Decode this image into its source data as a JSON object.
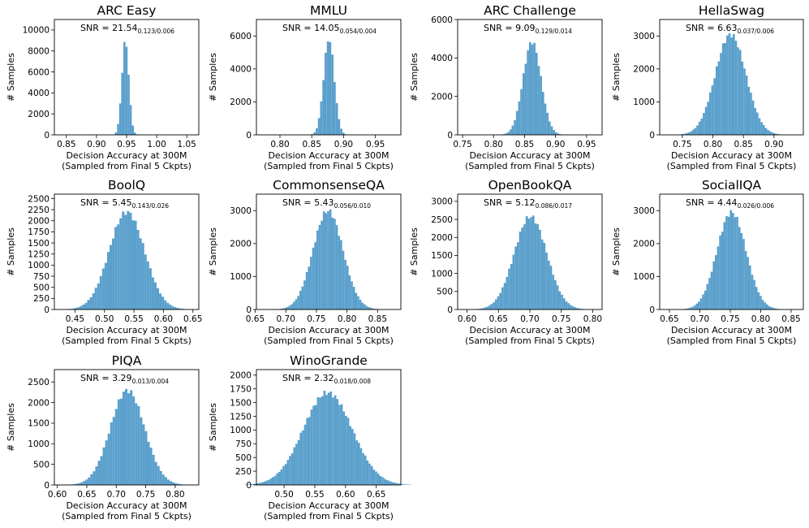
{
  "figure": {
    "xlabel_line1": "Decision Accuracy at 300M",
    "xlabel_line2": "(Sampled from Final 5 Ckpts)",
    "ylabel": "# Samples",
    "bar_color": "#5ba0cc",
    "snr_prefix": "SNR = "
  },
  "chart_data": [
    {
      "type": "bar",
      "title": "ARC Easy",
      "snr": "21.54",
      "snr_sub": "0.123/0.006",
      "xlim": [
        0.83,
        1.07
      ],
      "ylim": [
        0,
        11000
      ],
      "xticks": [
        "0.85",
        "0.90",
        "0.95",
        "1.00",
        "1.05"
      ],
      "yticks": [
        "0",
        "2000",
        "4000",
        "6000",
        "8000",
        "10000"
      ],
      "distribution": {
        "mean": 0.948,
        "sd": 0.0058,
        "peak": 8950,
        "bin": 0.0035
      }
    },
    {
      "type": "bar",
      "title": "MMLU",
      "snr": "14.05",
      "snr_sub": "0.054/0.004",
      "xlim": [
        0.763,
        0.99
      ],
      "ylim": [
        0,
        7000
      ],
      "xticks": [
        "0.80",
        "0.85",
        "0.90",
        "0.95"
      ],
      "yticks": [
        "0",
        "2000",
        "4000",
        "6000"
      ],
      "distribution": {
        "mean": 0.877,
        "sd": 0.0083,
        "peak": 5850,
        "bin": 0.0035
      }
    },
    {
      "type": "bar",
      "title": "ARC Challenge",
      "snr": "9.09",
      "snr_sub": "0.129/0.014",
      "xlim": [
        0.742,
        0.975
      ],
      "ylim": [
        0,
        6000
      ],
      "xticks": [
        "0.75",
        "0.80",
        "0.85",
        "0.90",
        "0.95"
      ],
      "yticks": [
        "0",
        "2000",
        "4000",
        "6000"
      ],
      "distribution": {
        "mean": 0.862,
        "sd": 0.0145,
        "peak": 4850,
        "bin": 0.0035
      }
    },
    {
      "type": "bar",
      "title": "HellaSwag",
      "snr": "6.63",
      "snr_sub": "0.037/0.006",
      "xlim": [
        0.713,
        0.948
      ],
      "ylim": [
        0,
        3500
      ],
      "xticks": [
        "0.75",
        "0.80",
        "0.85",
        "0.90"
      ],
      "yticks": [
        "0",
        "1000",
        "2000",
        "3000"
      ],
      "distribution": {
        "mean": 0.829,
        "sd": 0.025,
        "peak": 3050,
        "bin": 0.0035
      }
    },
    {
      "type": "bar",
      "title": "BoolQ",
      "snr": "5.45",
      "snr_sub": "0.143/0.026",
      "xlim": [
        0.415,
        0.66
      ],
      "ylim": [
        0,
        2600
      ],
      "xticks": [
        "0.45",
        "0.50",
        "0.55",
        "0.60",
        "0.65"
      ],
      "yticks": [
        "0",
        "250",
        "500",
        "750",
        "1000",
        "1250",
        "1500",
        "1750",
        "2000",
        "2250",
        "2500"
      ],
      "distribution": {
        "mean": 0.538,
        "sd": 0.03,
        "peak": 2200,
        "bin": 0.0042
      }
    },
    {
      "type": "bar",
      "title": "CommonsenseQA",
      "snr": "5.43",
      "snr_sub": "0.056/0.010",
      "xlim": [
        0.652,
        0.888
      ],
      "ylim": [
        0,
        3500
      ],
      "xticks": [
        "0.65",
        "0.70",
        "0.75",
        "0.80",
        "0.85"
      ],
      "yticks": [
        "0",
        "1000",
        "2000",
        "3000"
      ],
      "distribution": {
        "mean": 0.769,
        "sd": 0.0245,
        "peak": 3000,
        "bin": 0.0035
      }
    },
    {
      "type": "bar",
      "title": "OpenBookQA",
      "snr": "5.12",
      "snr_sub": "0.086/0.017",
      "xlim": [
        0.585,
        0.815
      ],
      "ylim": [
        0,
        3200
      ],
      "xticks": [
        "0.60",
        "0.65",
        "0.70",
        "0.75",
        "0.80"
      ],
      "yticks": [
        "0",
        "500",
        "1000",
        "1500",
        "2000",
        "2500",
        "3000"
      ],
      "distribution": {
        "mean": 0.701,
        "sd": 0.026,
        "peak": 2580,
        "bin": 0.0035
      }
    },
    {
      "type": "bar",
      "title": "SocialIQA",
      "snr": "4.44",
      "snr_sub": "0.026/0.006",
      "xlim": [
        0.634,
        0.87
      ],
      "ylim": [
        0,
        3500
      ],
      "xticks": [
        "0.65",
        "0.70",
        "0.75",
        "0.80",
        "0.85"
      ],
      "yticks": [
        "0",
        "1000",
        "2000",
        "3000"
      ],
      "distribution": {
        "mean": 0.752,
        "sd": 0.024,
        "peak": 2950,
        "bin": 0.0035
      }
    },
    {
      "type": "bar",
      "title": "PIQA",
      "snr": "3.29",
      "snr_sub": "0.013/0.004",
      "xlim": [
        0.595,
        0.84
      ],
      "ylim": [
        0,
        2800
      ],
      "xticks": [
        "0.60",
        "0.65",
        "0.70",
        "0.75",
        "0.80"
      ],
      "yticks": [
        "0",
        "500",
        "1000",
        "1500",
        "2000",
        "2500"
      ],
      "distribution": {
        "mean": 0.719,
        "sd": 0.029,
        "peak": 2300,
        "bin": 0.0042
      }
    },
    {
      "type": "bar",
      "title": "WinoGrande",
      "snr": "2.32",
      "snr_sub": "0.018/0.008",
      "xlim": [
        0.455,
        0.69
      ],
      "ylim": [
        0,
        2100
      ],
      "xticks": [
        "0.50",
        "0.55",
        "0.60",
        "0.65"
      ],
      "yticks": [
        "0",
        "250",
        "500",
        "750",
        "1000",
        "1250",
        "1500",
        "1750",
        "2000"
      ],
      "distribution": {
        "mean": 0.571,
        "sd": 0.04,
        "peak": 1680,
        "bin": 0.0035
      }
    }
  ]
}
